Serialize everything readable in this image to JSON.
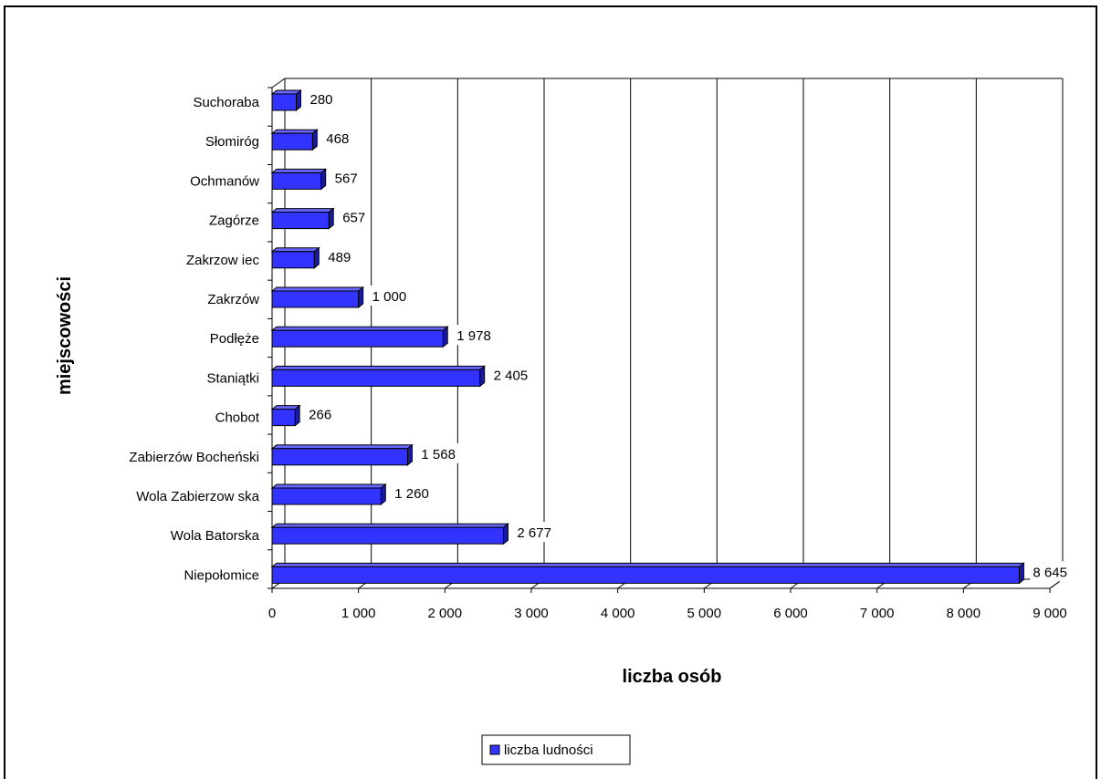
{
  "chart_data": {
    "type": "bar",
    "orientation": "horizontal",
    "style": "3d",
    "categories": [
      "Suchoraba",
      "Słomiróg",
      "Ochmanów",
      "Zagórze",
      "Zakrzow iec",
      "Zakrzów",
      "Podłęże",
      "Staniątki",
      "Chobot",
      "Zabierzów Bocheński",
      "Wola Zabierzow ska",
      "Wola Batorska",
      "Niepołomice"
    ],
    "series": [
      {
        "name": "liczba ludności",
        "color": "#3333FF",
        "values": [
          280,
          468,
          567,
          657,
          489,
          1000,
          1978,
          2405,
          266,
          1568,
          1260,
          2677,
          8645
        ],
        "value_labels": [
          "280",
          "468",
          "567",
          "657",
          "489",
          "1 000",
          "1 978",
          "2 405",
          "266",
          "1 568",
          "1 260",
          "2 677",
          "8 645"
        ]
      }
    ],
    "xlabel": "liczba osób",
    "ylabel": "miejscowości",
    "xlim": [
      0,
      9000
    ],
    "xticks": [
      0,
      1000,
      2000,
      3000,
      4000,
      5000,
      6000,
      7000,
      8000,
      9000
    ],
    "xtick_labels": [
      "0",
      "1 000",
      "2 000",
      "3 000",
      "4 000",
      "5 000",
      "6 000",
      "7 000",
      "8 000",
      "9 000"
    ],
    "grid": "vertical",
    "legend_position": "bottom"
  }
}
